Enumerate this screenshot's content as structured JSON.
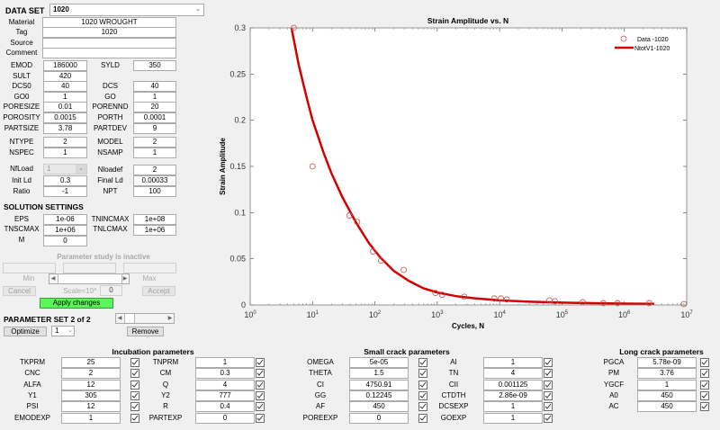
{
  "dataset": {
    "label": "DATA SET",
    "selected": "1020"
  },
  "fields": {
    "material": {
      "label": "Material",
      "value": "1020 WROUGHT"
    },
    "tag": {
      "label": "Tag",
      "value": "1020"
    },
    "source": {
      "label": "Source",
      "value": ""
    },
    "comment": {
      "label": "Comment",
      "value": ""
    }
  },
  "props": [
    {
      "l1": "EMOD",
      "v1": "186000",
      "l2": "SYLD",
      "v2": "350"
    },
    {
      "l1": "SULT",
      "v1": "420",
      "l2": "",
      "v2": null
    },
    {
      "l1": "DCS0",
      "v1": "40",
      "l2": "DCS",
      "v2": "40"
    },
    {
      "l1": "GO0",
      "v1": "1",
      "l2": "GO",
      "v2": "1"
    },
    {
      "l1": "PORESIZE",
      "v1": "0.01",
      "l2": "PORENND",
      "v2": "20"
    },
    {
      "l1": "POROSITY",
      "v1": "0.0015",
      "l2": "PORTH",
      "v2": "0.0001"
    },
    {
      "l1": "PARTSIZE",
      "v1": "3.78",
      "l2": "PARTDEV",
      "v2": "9"
    }
  ],
  "model": [
    {
      "l1": "NTYPE",
      "v1": "2",
      "l2": "MODEL",
      "v2": "2"
    },
    {
      "l1": "NSPEC",
      "v1": "1",
      "l2": "NSAMP",
      "v2": "1"
    }
  ],
  "load": {
    "nfload": {
      "label": "NfLoad",
      "value": "1"
    },
    "nloadef": {
      "label": "Nloadef",
      "value": "2"
    },
    "initld": {
      "label": "Init Ld",
      "value": "0.3"
    },
    "finalld": {
      "label": "Final Ld",
      "value": "0.00033"
    },
    "ratio": {
      "label": "Ratio",
      "value": "-1"
    },
    "npt": {
      "label": "NPT",
      "value": "100"
    }
  },
  "solution": {
    "title": "SOLUTION SETTINGS",
    "eps": {
      "label": "EPS",
      "value": "1e-06"
    },
    "tnincmax": {
      "label": "TNINCMAX",
      "value": "1e+08"
    },
    "tnscmax": {
      "label": "TNSCMAX",
      "value": "1e+06"
    },
    "tnlcmax": {
      "label": "TNLCMAX",
      "value": "1e+06"
    },
    "m": {
      "label": "M",
      "value": "0"
    }
  },
  "param_study": {
    "status": "Parameter study is inactive",
    "min_label": "Min",
    "max_label": "Max",
    "cancel": "Cancel",
    "scale_label": "Scale=10^",
    "scale_value": "0",
    "accept": "Accept",
    "apply": "Apply changes"
  },
  "param_set": {
    "label": "PARAMETER SET 2 of 2",
    "optimize": "Optimize",
    "opt_select": "1",
    "remove": "Remove"
  },
  "chart_data": {
    "type": "scatter",
    "title": "Strain Amplitude vs. N",
    "xlabel": "Cycles, N",
    "ylabel": "Strain Amplitude",
    "xscale": "log",
    "xlim": [
      1,
      10000000
    ],
    "ylim": [
      0,
      0.3
    ],
    "xticks": [
      "10^0",
      "10^1",
      "10^2",
      "10^3",
      "10^4",
      "10^5",
      "10^6",
      "10^7"
    ],
    "yticks": [
      "0",
      "0.05",
      "0.1",
      "0.15",
      "0.2",
      "0.25",
      "0.3"
    ],
    "grid": false,
    "legend_position": "upper right",
    "legend": [
      "Data -1020",
      "NtotV1-1020"
    ],
    "series": [
      {
        "name": "Data -1020",
        "style": "open-circle",
        "color": "#c0504d",
        "x": [
          5,
          10,
          39,
          52,
          93,
          126,
          290,
          935,
          1200,
          2700,
          8200,
          10500,
          13000,
          63000,
          77000,
          215000,
          460000,
          780000,
          2500000,
          9000000
        ],
        "y": [
          0.3,
          0.15,
          0.097,
          0.09,
          0.058,
          0.048,
          0.038,
          0.013,
          0.011,
          0.009,
          0.007,
          0.007,
          0.006,
          0.005,
          0.004,
          0.003,
          0.002,
          0.002,
          0.002,
          0.001
        ]
      },
      {
        "name": "NtotV1-1020",
        "style": "line",
        "color": "#d40000",
        "x": [
          4.6,
          6,
          8,
          10,
          15,
          20,
          30,
          50,
          80,
          120,
          200,
          350,
          600,
          1000,
          2000,
          4000,
          10000,
          30000,
          100000,
          300000,
          1000000,
          3000000
        ],
        "y": [
          0.3,
          0.26,
          0.225,
          0.2,
          0.165,
          0.143,
          0.117,
          0.089,
          0.067,
          0.052,
          0.037,
          0.026,
          0.018,
          0.0135,
          0.0095,
          0.0072,
          0.005,
          0.0035,
          0.0025,
          0.0019,
          0.0015,
          0.0012
        ]
      }
    ]
  },
  "incubation": {
    "title": "Incubation parameters",
    "rows": [
      {
        "l1": "TKPRM",
        "v1": "25",
        "l2": "TNPRM",
        "v2": "1"
      },
      {
        "l1": "CNC",
        "v1": "2",
        "l2": "CM",
        "v2": "0.3"
      },
      {
        "l1": "ALFA",
        "v1": "12",
        "l2": "Q",
        "v2": "4"
      },
      {
        "l1": "Y1",
        "v1": "305",
        "l2": "Y2",
        "v2": "777"
      },
      {
        "l1": "PSI",
        "v1": "12",
        "l2": "R",
        "v2": "0.4"
      },
      {
        "l1": "EMODEXP",
        "v1": "1",
        "l2": "PARTEXP",
        "v2": "0"
      }
    ]
  },
  "small_crack": {
    "title": "Small crack parameters",
    "rows": [
      {
        "l1": "OMEGA",
        "v1": "5e-05",
        "l2": "AI",
        "v2": "1"
      },
      {
        "l1": "THETA",
        "v1": "1.5",
        "l2": "TN",
        "v2": "4"
      },
      {
        "l1": "CI",
        "v1": "4750.91",
        "l2": "CII",
        "v2": "0.001125"
      },
      {
        "l1": "GG",
        "v1": "0.12245",
        "l2": "CTDTH",
        "v2": "2.86e-09"
      },
      {
        "l1": "AF",
        "v1": "450",
        "l2": "DCSEXP",
        "v2": "1"
      },
      {
        "l1": "POREEXP",
        "v1": "0",
        "l2": "GOEXP",
        "v2": "1"
      }
    ]
  },
  "long_crack": {
    "title": "Long crack parameters",
    "rows": [
      {
        "l": "PGCA",
        "v": "5.78e-09"
      },
      {
        "l": "PM",
        "v": "3.76"
      },
      {
        "l": "YGCF",
        "v": "1"
      },
      {
        "l": "A0",
        "v": "450"
      },
      {
        "l": "AC",
        "v": "450"
      }
    ]
  }
}
